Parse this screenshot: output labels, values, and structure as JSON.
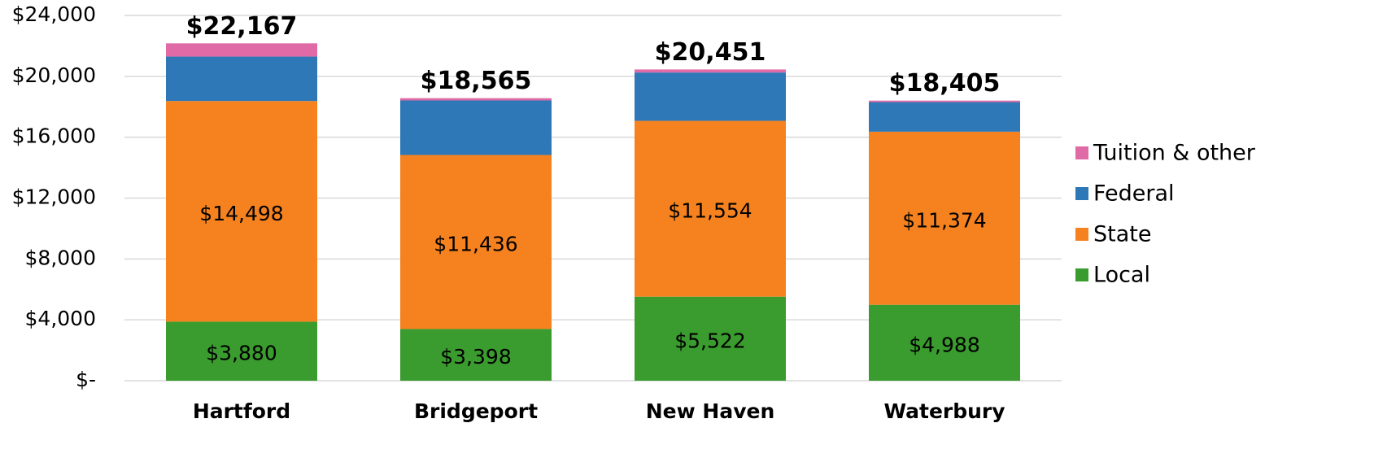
{
  "chart_data": {
    "type": "stacked_bar",
    "categories": [
      "Hartford",
      "Bridgeport",
      "New Haven",
      "Waterbury"
    ],
    "series": [
      {
        "name": "Local",
        "color": "#3a9b2e",
        "values": [
          3880,
          3398,
          5522,
          4988
        ],
        "value_labels": [
          "$3,880",
          "$3,398",
          "$5,522",
          "$4,988"
        ]
      },
      {
        "name": "State",
        "color": "#f5821f",
        "values": [
          14498,
          11436,
          11554,
          11374
        ],
        "value_labels": [
          "$14,498",
          "$11,436",
          "$11,554",
          "$11,374"
        ]
      },
      {
        "name": "Federal",
        "color": "#2e78b7",
        "values": [
          2920,
          3581,
          3175,
          1943
        ]
      },
      {
        "name": "Tuition & other",
        "color": "#e06aa6",
        "values": [
          869,
          150,
          200,
          100
        ]
      }
    ],
    "totals": [
      22167,
      18565,
      20451,
      18405
    ],
    "total_labels": [
      "$22,167",
      "$18,565",
      "$20,451",
      "$18,405"
    ],
    "ylim": [
      0,
      24000
    ],
    "yticks": [
      {
        "value": 0,
        "label": "$-"
      },
      {
        "value": 4000,
        "label": "$4,000"
      },
      {
        "value": 8000,
        "label": "$8,000"
      },
      {
        "value": 12000,
        "label": "$12,000"
      },
      {
        "value": 16000,
        "label": "$16,000"
      },
      {
        "value": 20000,
        "label": "$20,000"
      },
      {
        "value": 24000,
        "label": "$24,000"
      }
    ],
    "grid": true,
    "legend": "right"
  }
}
